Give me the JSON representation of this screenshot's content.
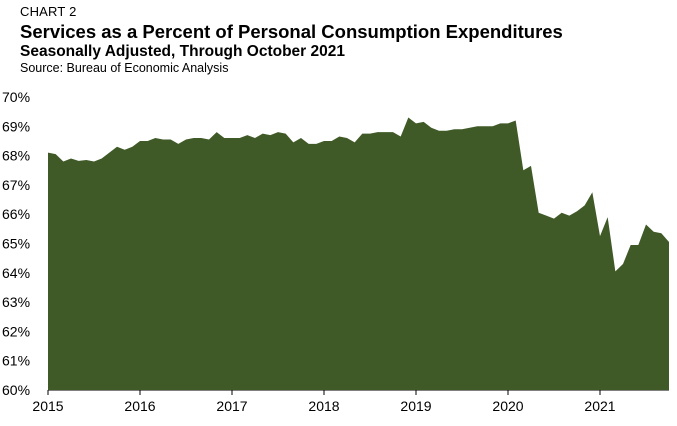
{
  "header": {
    "chart_label": "CHART 2",
    "title": "Services as a Percent of Personal Consumption Expenditures",
    "subtitle": "Seasonally Adjusted, Through October 2021",
    "source": "Source: Bureau of Economic Analysis"
  },
  "chart_data": {
    "type": "area",
    "title": "Services as a Percent of Personal Consumption Expenditures",
    "subtitle": "Seasonally Adjusted, Through October 2021",
    "xlabel": "",
    "ylabel": "",
    "ylim": [
      60,
      70
    ],
    "yticks": [
      "60%",
      "61%",
      "62%",
      "63%",
      "64%",
      "65%",
      "66%",
      "67%",
      "68%",
      "69%",
      "70%"
    ],
    "xticks": [
      "2015",
      "2016",
      "2017",
      "2018",
      "2019",
      "2020",
      "2021"
    ],
    "grid": false,
    "fill_color": "#3f5a27",
    "start": "2015-01",
    "end": "2021-10",
    "series": [
      {
        "values": [
          68.1,
          68.05,
          67.8,
          67.9,
          67.82,
          67.85,
          67.8,
          67.9,
          68.1,
          68.3,
          68.2,
          68.3,
          68.5,
          68.5,
          68.6,
          68.55,
          68.55,
          68.4,
          68.55,
          68.6,
          68.6,
          68.55,
          68.8,
          68.6,
          68.6,
          68.6,
          68.7,
          68.6,
          68.75,
          68.7,
          68.8,
          68.75,
          68.45,
          68.6,
          68.4,
          68.4,
          68.5,
          68.5,
          68.65,
          68.6,
          68.45,
          68.75,
          68.75,
          68.8,
          68.8,
          68.8,
          68.65,
          69.3,
          69.1,
          69.15,
          68.95,
          68.85,
          68.85,
          68.9,
          68.9,
          68.95,
          69.0,
          69.0,
          69.0,
          69.1,
          69.1,
          69.2,
          67.5,
          67.65,
          66.05,
          65.95,
          65.85,
          66.05,
          65.95,
          66.1,
          66.3,
          66.75,
          65.25,
          65.9,
          64.05,
          64.3,
          64.95,
          64.95,
          65.65,
          65.4,
          65.35,
          65.05
        ]
      }
    ]
  }
}
